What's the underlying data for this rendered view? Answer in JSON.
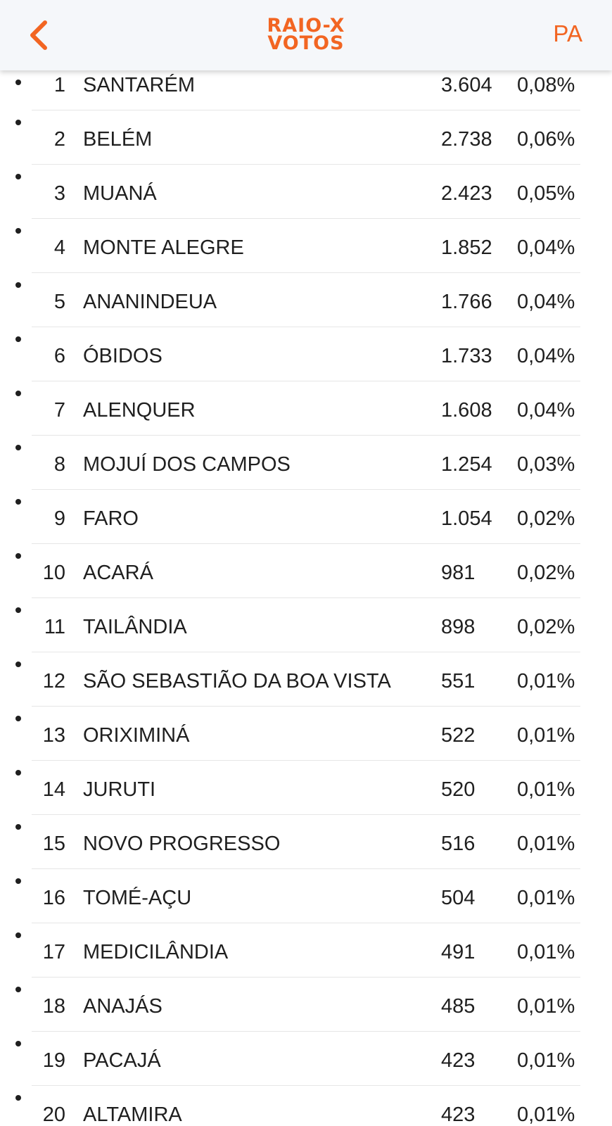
{
  "header": {
    "logo_line1": "RAIO-X",
    "logo_line2": "VOTOS",
    "state": "PA",
    "back_icon": "chevron-left-icon"
  },
  "colors": {
    "accent": "#f26522",
    "header_bg": "#f5f7fa",
    "divider": "#e6e6e6",
    "text": "#1f1f1f"
  },
  "rows": [
    {
      "rank": "1",
      "city": "SANTARÉM",
      "votes": "3.604",
      "pct": "0,08%"
    },
    {
      "rank": "2",
      "city": "BELÉM",
      "votes": "2.738",
      "pct": "0,06%"
    },
    {
      "rank": "3",
      "city": "MUANÁ",
      "votes": "2.423",
      "pct": "0,05%"
    },
    {
      "rank": "4",
      "city": "MONTE ALEGRE",
      "votes": "1.852",
      "pct": "0,04%"
    },
    {
      "rank": "5",
      "city": "ANANINDEUA",
      "votes": "1.766",
      "pct": "0,04%"
    },
    {
      "rank": "6",
      "city": "ÓBIDOS",
      "votes": "1.733",
      "pct": "0,04%"
    },
    {
      "rank": "7",
      "city": "ALENQUER",
      "votes": "1.608",
      "pct": "0,04%"
    },
    {
      "rank": "8",
      "city": "MOJUÍ DOS CAMPOS",
      "votes": "1.254",
      "pct": "0,03%"
    },
    {
      "rank": "9",
      "city": "FARO",
      "votes": "1.054",
      "pct": "0,02%"
    },
    {
      "rank": "10",
      "city": "ACARÁ",
      "votes": "981",
      "pct": "0,02%"
    },
    {
      "rank": "11",
      "city": "TAILÂNDIA",
      "votes": "898",
      "pct": "0,02%"
    },
    {
      "rank": "12",
      "city": "SÃO SEBASTIÃO DA BOA VISTA",
      "votes": "551",
      "pct": "0,01%"
    },
    {
      "rank": "13",
      "city": "ORIXIMINÁ",
      "votes": "522",
      "pct": "0,01%"
    },
    {
      "rank": "14",
      "city": "JURUTI",
      "votes": "520",
      "pct": "0,01%"
    },
    {
      "rank": "15",
      "city": "NOVO PROGRESSO",
      "votes": "516",
      "pct": "0,01%"
    },
    {
      "rank": "16",
      "city": "TOMÉ-AÇU",
      "votes": "504",
      "pct": "0,01%"
    },
    {
      "rank": "17",
      "city": "MEDICILÂNDIA",
      "votes": "491",
      "pct": "0,01%"
    },
    {
      "rank": "18",
      "city": "ANAJÁS",
      "votes": "485",
      "pct": "0,01%"
    },
    {
      "rank": "19",
      "city": "PACAJÁ",
      "votes": "423",
      "pct": "0,01%"
    },
    {
      "rank": "20",
      "city": "ALTAMIRA",
      "votes": "423",
      "pct": "0,01%"
    }
  ]
}
